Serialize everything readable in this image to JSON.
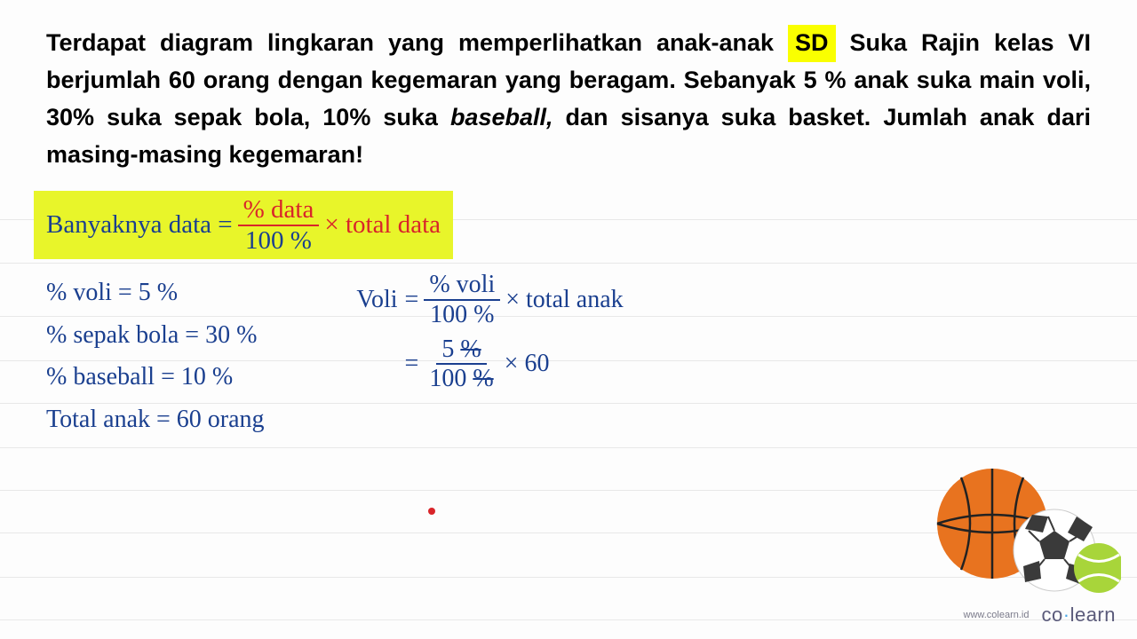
{
  "problem": {
    "pre": "Terdapat diagram lingkaran yang memperlihatkan anak-anak ",
    "badge": "SD",
    "mid1": " Suka Rajin kelas VI berjumlah 60 orang dengan kegemaran yang beragam. Sebanyak 5 % anak suka main voli, 30% suka sepak bola, 10% suka ",
    "italic": "baseball,",
    "post": " dan sisanya suka basket. Jumlah anak dari masing-masing kegemaran!"
  },
  "formula": {
    "label": "Banyaknya data = ",
    "num": "% data",
    "den": "100 %",
    "tail": " × total data"
  },
  "given": {
    "l1a": "% voli = ",
    "l1b": "5 %",
    "l2a": "% sepak bola = ",
    "l2b": "30 %",
    "l3a": "% baseball = ",
    "l3b": "10 %",
    "l4a": "Total anak = ",
    "l4b": "60 orang"
  },
  "calc": {
    "r1_lhs": "Voli",
    "r1_eq": " = ",
    "r1_num": "% voli",
    "r1_den": "100 %",
    "r1_tail": " × total anak",
    "r2_eq": "= ",
    "r2_num": "5 %",
    "r2_den": "100 %",
    "r2_tail": " × 60"
  },
  "footer": {
    "url": "www.colearn.id",
    "brand_a": "co",
    "brand_dot": "·",
    "brand_b": "learn"
  },
  "style": {
    "line_positions": [
      247,
      296,
      356,
      406,
      454,
      504,
      552,
      600,
      650,
      698
    ],
    "colors": {
      "highlight": "#e8f52a",
      "badge": "#faff00",
      "blue": "#1a3f8f",
      "red": "#d9252a",
      "line": "#e8e8e8",
      "basketball": "#e8731f",
      "soccer_dark": "#3a3a3a",
      "tennis": "#9acd32"
    }
  }
}
